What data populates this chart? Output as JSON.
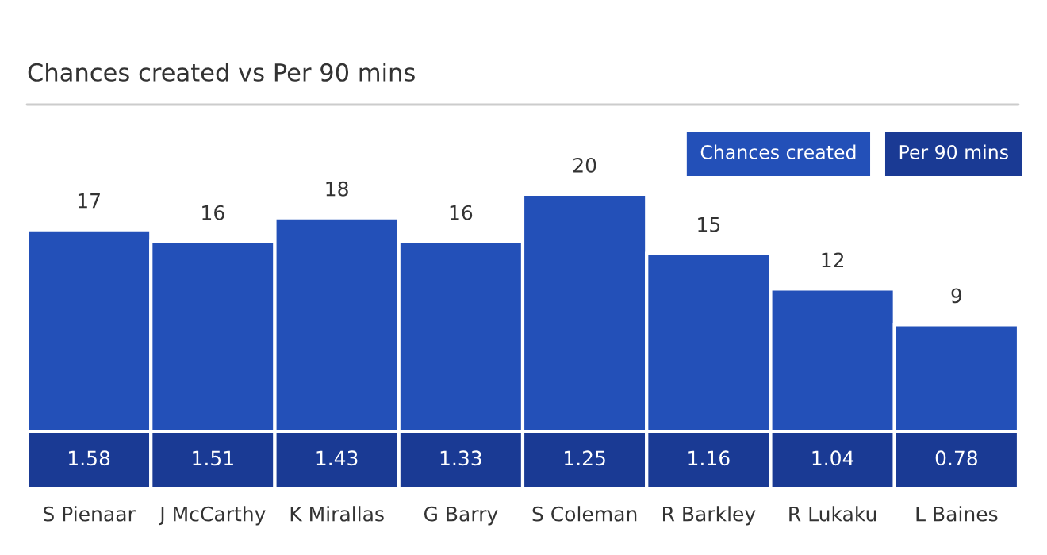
{
  "chart_data": [
    {
      "type": "bar",
      "title": "Chances created vs Per 90 mins",
      "categories": [
        null,
        null,
        null,
        null,
        null,
        null,
        null,
        null
      ],
      "series": [
        {
          "name": "Chances created",
          "type": "bar",
          "color": "#2350b8",
          "values": [
            17,
            16,
            18,
            16,
            20,
            15,
            12,
            9
          ]
        }
      ],
      "data_labels": true,
      "legend": "top right",
      "grid": false
    },
    {
      "type": "other",
      "categories": [
        "S Pienaar",
        "J McCarthy",
        "K Mirallas",
        "G Barry",
        "S Coleman",
        "R Barkley",
        "R Lukaku",
        "L Baines"
      ],
      "series": [
        {
          "name": "Per 90 mins",
          "color": "#1a3a94",
          "values": [
            1.58,
            1.51,
            1.43,
            1.33,
            1.25,
            1.16,
            1.04,
            0.78
          ]
        }
      ],
      "data_labels": true
    }
  ]
}
